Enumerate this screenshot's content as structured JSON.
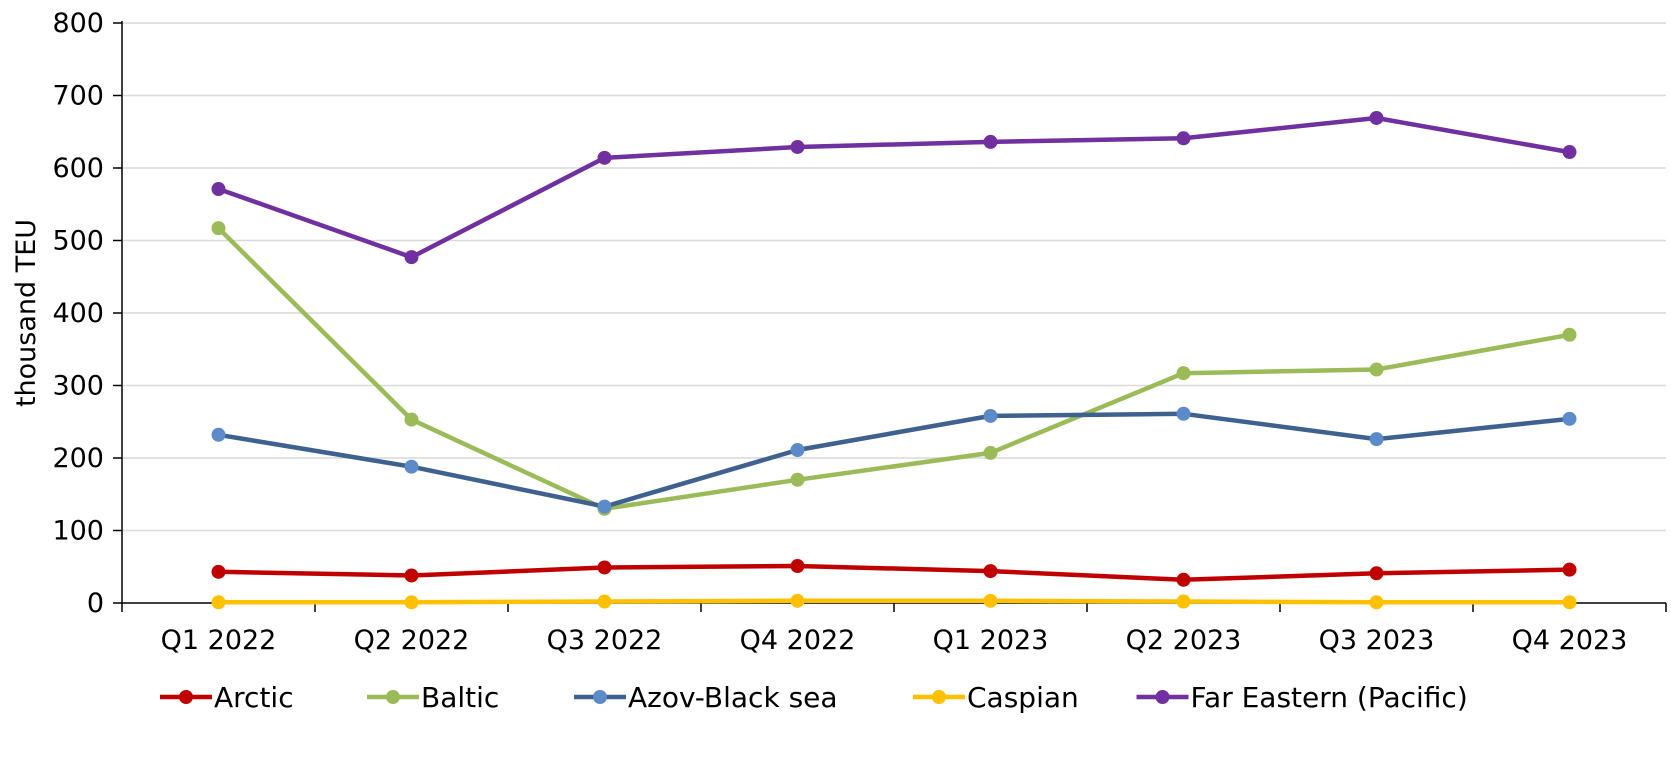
{
  "chart_data": {
    "type": "line",
    "title": "",
    "xlabel": "",
    "ylabel": "thousand TEU",
    "ylim": [
      0,
      800
    ],
    "yticks": [
      0,
      100,
      200,
      300,
      400,
      500,
      600,
      700,
      800
    ],
    "ytick_labels": [
      "0",
      "100",
      "200",
      "300",
      "400",
      "500",
      "600",
      "700",
      "800"
    ],
    "grid": true,
    "legend_position": "bottom",
    "categories": [
      "Q1 2022",
      "Q2 2022",
      "Q3 2022",
      "Q4 2022",
      "Q1 2023",
      "Q2 2023",
      "Q3 2023",
      "Q4 2023"
    ],
    "series": [
      {
        "name": "Arctic",
        "color": "#C00000",
        "marker_color": "#C00000",
        "values": [
          43,
          38,
          49,
          51,
          44,
          32,
          41,
          46
        ]
      },
      {
        "name": "Baltic",
        "color": "#9BBB59",
        "marker_color": "#9BBB59",
        "values": [
          517,
          253,
          130,
          170,
          207,
          317,
          322,
          370
        ]
      },
      {
        "name": "Azov-Black sea",
        "color": "#3E6190",
        "marker_color": "#5B8BC9",
        "values": [
          232,
          188,
          133,
          211,
          258,
          261,
          226,
          254
        ]
      },
      {
        "name": "Caspian",
        "color": "#FFC000",
        "marker_color": "#FFC000",
        "values": [
          1,
          1,
          2,
          3,
          3,
          2,
          1,
          1
        ]
      },
      {
        "name": "Far Eastern (Pacific)",
        "color": "#7030A0",
        "marker_color": "#7030A0",
        "values": [
          571,
          477,
          614,
          629,
          636,
          641,
          669,
          622
        ]
      }
    ]
  }
}
